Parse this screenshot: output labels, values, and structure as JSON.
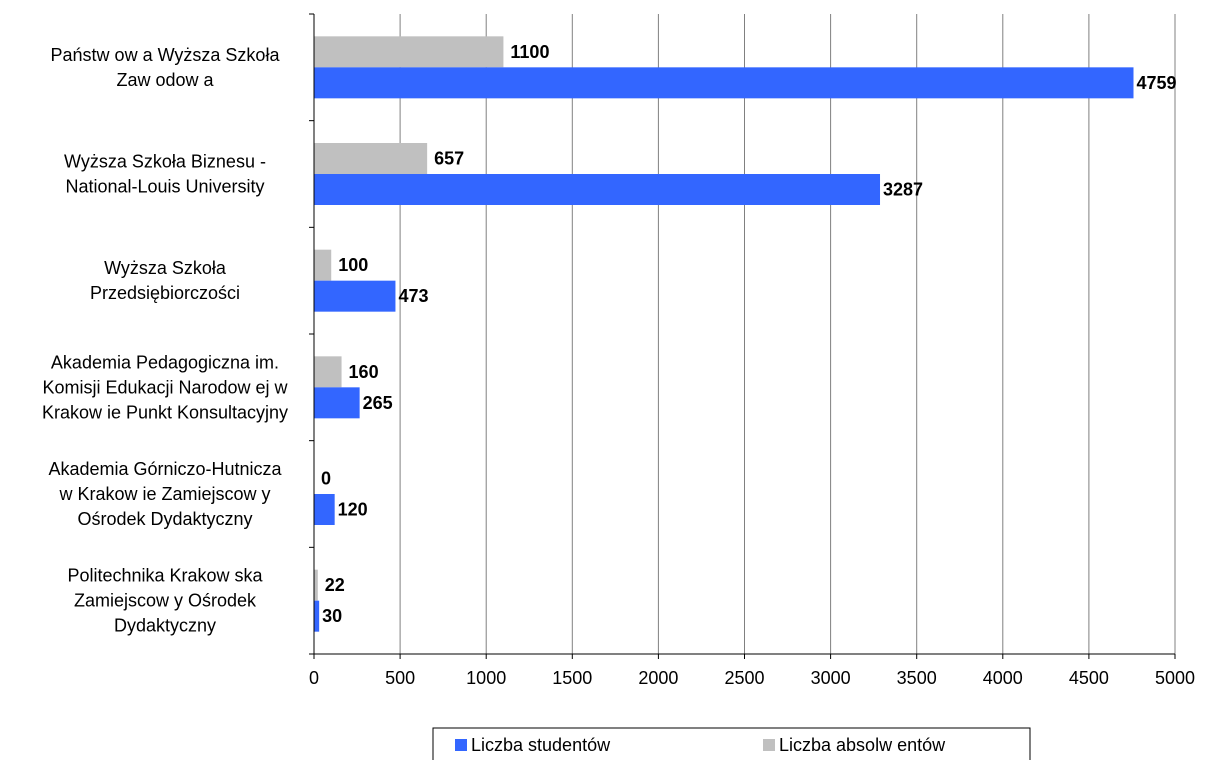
{
  "chart_data": {
    "type": "bar",
    "orientation": "horizontal",
    "categories": [
      [
        "Państw ow a Wyższa Szkoła",
        "Zaw odow a"
      ],
      [
        "Wyższa Szkoła Biznesu -",
        "National-Louis University"
      ],
      [
        "Wyższa Szkoła",
        "Przedsiębiorczości"
      ],
      [
        "Akademia Pedagogiczna im.",
        "Komisji Edukacji Narodow ej w",
        "Krakow ie Punkt Konsultacyjny"
      ],
      [
        "Akademia Górniczo-Hutnicza",
        "w  Krakow ie Zamiejscow y",
        "Ośrodek Dydaktyczny"
      ],
      [
        "Politechnika Krakow ska",
        "Zamiejscow y Ośrodek",
        "Dydaktyczny"
      ]
    ],
    "series": [
      {
        "name": "Liczba absolw entów",
        "color": "#c0c0c0",
        "values": [
          1100,
          657,
          100,
          160,
          0,
          22
        ]
      },
      {
        "name": "Liczba studentów",
        "color": "#3366ff",
        "values": [
          4759,
          3287,
          473,
          265,
          120,
          30
        ]
      }
    ],
    "xlim": [
      0,
      5000
    ],
    "xticks": [
      0,
      500,
      1000,
      1500,
      2000,
      2500,
      3000,
      3500,
      4000,
      4500,
      5000
    ],
    "grid": true,
    "legend": {
      "position": "bottom",
      "items": [
        {
          "label": "Liczba studentów",
          "color": "#3366ff"
        },
        {
          "label": "Liczba absolw entów",
          "color": "#c0c0c0"
        }
      ]
    }
  }
}
